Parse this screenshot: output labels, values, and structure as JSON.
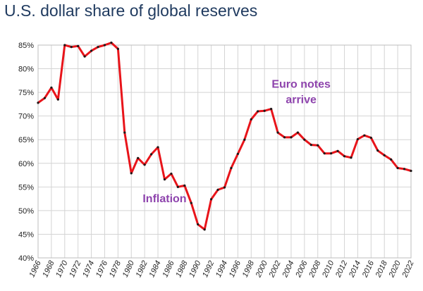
{
  "title": "U.S. dollar share of global reserves",
  "chart_data": {
    "type": "line",
    "title": "U.S. dollar share of global reserves",
    "xlabel": "",
    "ylabel": "",
    "ylim": [
      40,
      85
    ],
    "xlim": [
      1966,
      2022
    ],
    "y_ticks": [
      "40%",
      "45%",
      "50%",
      "55%",
      "60%",
      "65%",
      "70%",
      "75%",
      "80%",
      "85%"
    ],
    "x_ticks": [
      "1966",
      "1968",
      "1970",
      "1972",
      "1974",
      "1976",
      "1978",
      "1980",
      "1982",
      "1984",
      "1986",
      "1988",
      "1990",
      "1992",
      "1994",
      "1996",
      "1998",
      "2000",
      "2002",
      "2004",
      "2006",
      "2008",
      "2010",
      "2012",
      "2014",
      "2016",
      "2018",
      "2020",
      "2022"
    ],
    "grid": true,
    "legend": "none",
    "colors": {
      "line": "#e8141a",
      "marker": "#1a1a1a",
      "grid": "#d4d4d4",
      "annotation": "#8e44ad",
      "title": "#1f3a5f"
    },
    "series": [
      {
        "x": [
          1966,
          1967,
          1968,
          1969,
          1970,
          1971,
          1972,
          1973,
          1974,
          1975,
          1976,
          1977,
          1978,
          1979,
          1980,
          1981,
          1982,
          1983,
          1984,
          1985,
          1986,
          1987,
          1988,
          1989,
          1990,
          1991,
          1992,
          1993,
          1994,
          1995,
          1996,
          1997,
          1998,
          1999,
          2000,
          2001,
          2002,
          2003,
          2004,
          2005,
          2006,
          2007,
          2008,
          2009,
          2010,
          2011,
          2012,
          2013,
          2014,
          2015,
          2016,
          2017,
          2018,
          2019,
          2020,
          2021,
          2022
        ],
        "y": [
          72.8,
          73.8,
          76.0,
          73.5,
          85.0,
          84.6,
          84.8,
          82.6,
          83.8,
          84.6,
          85.0,
          85.5,
          84.2,
          66.5,
          57.9,
          61.1,
          59.7,
          61.9,
          63.4,
          56.6,
          57.8,
          55.0,
          55.3,
          51.6,
          47.1,
          46.0,
          52.4,
          54.4,
          54.9,
          59.0,
          62.0,
          65.0,
          69.3,
          71.0,
          71.1,
          71.5,
          66.5,
          65.5,
          65.5,
          66.5,
          65.0,
          63.9,
          63.8,
          62.1,
          62.1,
          62.6,
          61.5,
          61.2,
          65.1,
          65.9,
          65.4,
          62.7,
          61.7,
          60.8,
          59.0,
          58.8,
          58.4
        ]
      }
    ],
    "annotations": [
      {
        "lines": [
          "Euro notes",
          "arrive"
        ],
        "x": 2005.5,
        "y": 76.0
      },
      {
        "lines": [
          "Inflation"
        ],
        "x": 1985,
        "y": 51.8
      }
    ]
  }
}
